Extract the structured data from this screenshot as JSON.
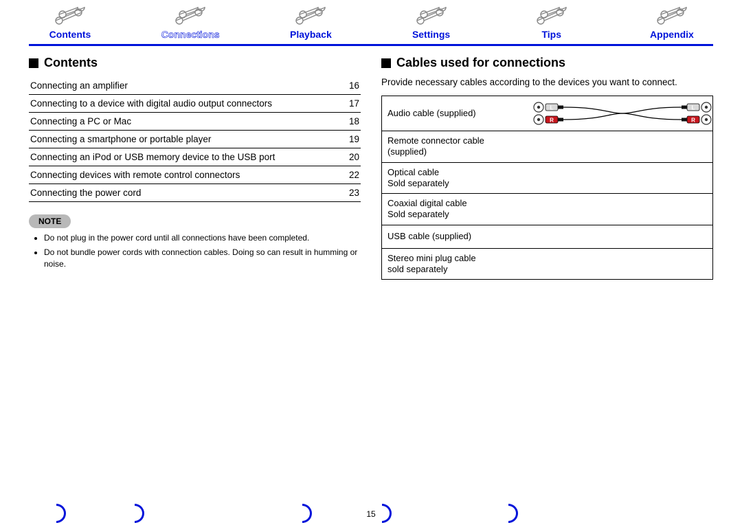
{
  "nav": {
    "items": [
      {
        "label": "Contents",
        "active": false
      },
      {
        "label": "Connections",
        "active": true
      },
      {
        "label": "Playback",
        "active": false
      },
      {
        "label": "Settings",
        "active": false
      },
      {
        "label": "Tips",
        "active": false
      },
      {
        "label": "Appendix",
        "active": false
      }
    ],
    "colors": {
      "accent": "#0013da"
    }
  },
  "left": {
    "heading": "Contents",
    "toc": [
      {
        "title": "Connecting an amplifier",
        "page": "16"
      },
      {
        "title": "Connecting to a device with digital audio output connectors",
        "page": "17"
      },
      {
        "title": "Connecting a PC or Mac",
        "page": "18"
      },
      {
        "title": "Connecting a smartphone or portable player",
        "page": "19"
      },
      {
        "title": "Connecting an iPod or USB memory device to the USB port",
        "page": "20"
      },
      {
        "title": "Connecting devices with remote control connectors",
        "page": "22"
      },
      {
        "title": "Connecting the power cord",
        "page": "23"
      }
    ],
    "note_label": "NOTE",
    "notes": [
      "Do not plug in the power cord until all connections have been completed.",
      "Do not bundle power cords with connection cables. Doing so can result in humming or noise."
    ]
  },
  "right": {
    "heading": "Cables used for connections",
    "intro": "Provide necessary cables according to the devices you want to connect.",
    "cables": [
      {
        "label": "Audio cable (supplied)",
        "icon": "audio-rca"
      },
      {
        "label": "Remote connector cable (supplied)",
        "icon": ""
      },
      {
        "label": "Optical cable\nSold separately",
        "icon": ""
      },
      {
        "label": "Coaxial digital cable\nSold separately",
        "icon": ""
      },
      {
        "label": "USB cable (supplied)",
        "icon": ""
      },
      {
        "label": "Stereo mini plug cable\nsold separately",
        "icon": ""
      }
    ]
  },
  "page_number": "15",
  "colors": {
    "accent": "#0013da",
    "note_bg": "#b8b8b8",
    "rca_white": "#d9d9d9",
    "rca_red": "#c8171e",
    "jack_outer": "#5c5c5c"
  }
}
